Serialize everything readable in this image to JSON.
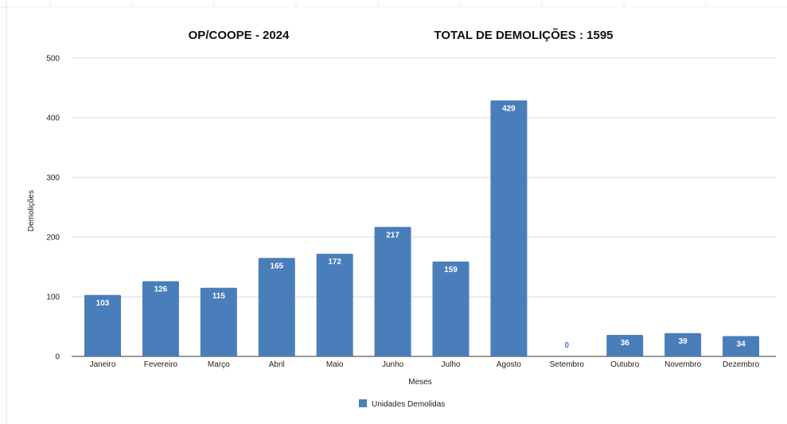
{
  "chart_data": {
    "type": "bar",
    "title_left": "OP/COOPE - 2024",
    "title_right": "TOTAL DE DEMOLIÇÕES : 1595",
    "xlabel": "Meses",
    "ylabel": "Demolições",
    "ylim": [
      0,
      500
    ],
    "yticks": [
      "0",
      "100",
      "200",
      "300",
      "400",
      "500"
    ],
    "categories": [
      "Janeiro",
      "Fevereiro",
      "Março",
      "Abril",
      "Maio",
      "Junho",
      "Julho",
      "Agosto",
      "Setembro",
      "Outubro",
      "Novembro",
      "Dezembro"
    ],
    "series": [
      {
        "name": "Unidades Demolidas",
        "values": [
          103,
          126,
          115,
          165,
          172,
          217,
          159,
          429,
          0,
          36,
          39,
          34
        ]
      }
    ],
    "grid": true,
    "legend_position": "bottom",
    "colors": {
      "bar": "#4a7ebb",
      "label_inside": "#ffffff",
      "label_outside": "#4a7ebb",
      "grid": "#d9d9d9"
    }
  }
}
